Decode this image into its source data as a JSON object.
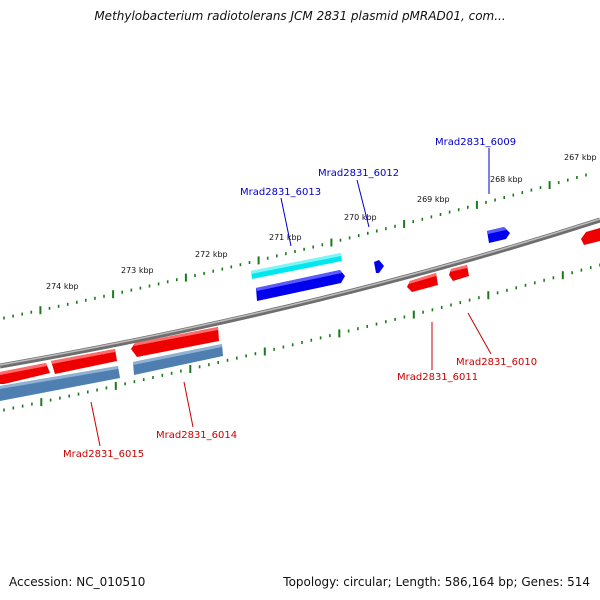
{
  "title": "Methylobacterium radiotolerans JCM 2831 plasmid pMRAD01, com...",
  "footer": {
    "accession": "Accession: NC_010510",
    "summary": "Topology: circular; Length: 586,164 bp; Genes: 514"
  },
  "scale": {
    "labels": [
      "274 kbp",
      "273 kbp",
      "272 kbp",
      "271 kbp",
      "270 kbp",
      "269 kbp",
      "268 kbp",
      "267 kbp"
    ]
  },
  "genes": [
    {
      "id": "Mrad2831_6009",
      "color": "#0000cc"
    },
    {
      "id": "Mrad2831_6012",
      "color": "#0000cc"
    },
    {
      "id": "Mrad2831_6013",
      "color": "#0000cc"
    },
    {
      "id": "Mrad2831_6010",
      "color": "#cc0000"
    },
    {
      "id": "Mrad2831_6011",
      "color": "#cc0000"
    },
    {
      "id": "Mrad2831_6014",
      "color": "#cc0000"
    },
    {
      "id": "Mrad2831_6015",
      "color": "#cc0000"
    }
  ],
  "colors": {
    "backbone": "#7a7a7a",
    "tick": "#1b7a1b",
    "forward_cds": "#0000ee",
    "reverse_cds": "#ee0000",
    "forward_feature": "#00e5ee",
    "reverse_feature": "#4f7fb0"
  }
}
